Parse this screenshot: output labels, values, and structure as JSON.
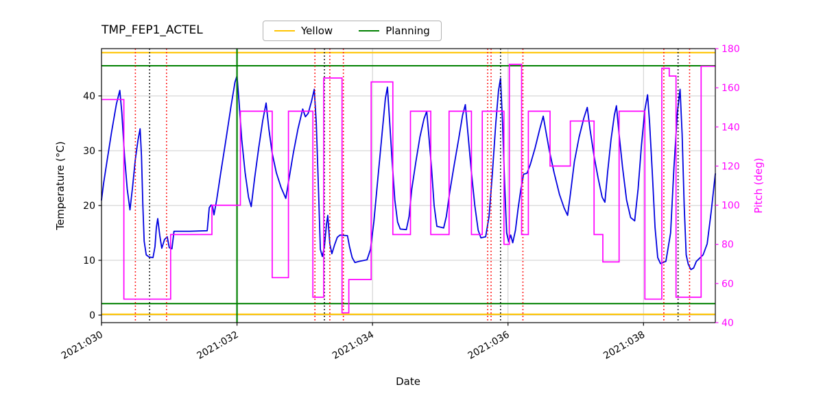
{
  "title": "TMP_FEP1_ACTEL",
  "legend": {
    "items": [
      {
        "label": "Yellow",
        "color": "#ffc400"
      },
      {
        "label": "Planning",
        "color": "#008000"
      }
    ]
  },
  "axes": {
    "xlabel": "Date",
    "ylabel_left": "Temperature (°C)",
    "ylabel_right": "Pitch (deg)",
    "xticks": [
      {
        "day": 30,
        "label": "2021:030"
      },
      {
        "day": 32,
        "label": "2021:032"
      },
      {
        "day": 34,
        "label": "2021:034"
      },
      {
        "day": 36,
        "label": "2021:036"
      },
      {
        "day": 38,
        "label": "2021:038"
      }
    ],
    "yticks_left": [
      0,
      10,
      20,
      30,
      40
    ],
    "yticks_right": [
      40,
      60,
      80,
      100,
      120,
      140,
      160,
      180
    ],
    "grid_color": "#cccccc",
    "right_axis_color": "#ff00ff"
  },
  "chart_data": {
    "type": "line",
    "xlim": [
      30,
      39.06
    ],
    "ylim_left": [
      -1.375,
      48.625
    ],
    "ylim_right": [
      40,
      180
    ],
    "series": [
      {
        "name": "temperature",
        "color": "#0000e0",
        "axis": "left",
        "step": false,
        "points": [
          [
            30.0,
            21
          ],
          [
            30.03,
            24
          ],
          [
            30.08,
            28
          ],
          [
            30.15,
            33.5
          ],
          [
            30.22,
            38.5
          ],
          [
            30.27,
            41
          ],
          [
            30.3,
            37
          ],
          [
            30.34,
            29
          ],
          [
            30.38,
            23
          ],
          [
            30.42,
            19.2
          ],
          [
            30.46,
            23.5
          ],
          [
            30.5,
            28.5
          ],
          [
            30.54,
            32
          ],
          [
            30.57,
            34
          ],
          [
            30.59,
            29
          ],
          [
            30.61,
            20
          ],
          [
            30.63,
            13.5
          ],
          [
            30.66,
            11
          ],
          [
            30.7,
            10.6
          ],
          [
            30.76,
            10.5
          ],
          [
            30.79,
            12.5
          ],
          [
            30.81,
            16
          ],
          [
            30.83,
            17.6
          ],
          [
            30.86,
            14.5
          ],
          [
            30.89,
            12.2
          ],
          [
            30.93,
            13.8
          ],
          [
            30.97,
            14.3
          ],
          [
            31.0,
            12.3
          ],
          [
            31.04,
            12.1
          ],
          [
            31.07,
            15.3
          ],
          [
            31.3,
            15.3
          ],
          [
            31.56,
            15.4
          ],
          [
            31.59,
            19.6
          ],
          [
            31.62,
            20.1
          ],
          [
            31.64,
            19.8
          ],
          [
            31.66,
            18.3
          ],
          [
            31.7,
            21
          ],
          [
            31.76,
            26
          ],
          [
            31.83,
            31.5
          ],
          [
            31.91,
            38
          ],
          [
            31.97,
            42.5
          ],
          [
            32.0,
            43.7
          ],
          [
            32.03,
            39
          ],
          [
            32.07,
            32
          ],
          [
            32.12,
            26
          ],
          [
            32.17,
            21.5
          ],
          [
            32.21,
            19.8
          ],
          [
            32.26,
            25
          ],
          [
            32.32,
            30.5
          ],
          [
            32.38,
            35.5
          ],
          [
            32.43,
            38.7
          ],
          [
            32.47,
            34
          ],
          [
            32.52,
            29.5
          ],
          [
            32.58,
            26
          ],
          [
            32.65,
            23.3
          ],
          [
            32.72,
            21.3
          ],
          [
            32.77,
            25
          ],
          [
            32.83,
            29.5
          ],
          [
            32.9,
            34
          ],
          [
            32.97,
            37.6
          ],
          [
            33.01,
            36.2
          ],
          [
            33.05,
            36.8
          ],
          [
            33.1,
            39
          ],
          [
            33.14,
            41.2
          ],
          [
            33.17,
            35
          ],
          [
            33.2,
            24
          ],
          [
            33.23,
            12
          ],
          [
            33.26,
            10.7
          ],
          [
            33.29,
            12.5
          ],
          [
            33.32,
            16.5
          ],
          [
            33.34,
            18.2
          ],
          [
            33.37,
            13
          ],
          [
            33.4,
            11.2
          ],
          [
            33.44,
            12.8
          ],
          [
            33.48,
            14.2
          ],
          [
            33.52,
            14.6
          ],
          [
            33.63,
            14.5
          ],
          [
            33.66,
            12.5
          ],
          [
            33.7,
            10.5
          ],
          [
            33.74,
            9.6
          ],
          [
            33.8,
            9.8
          ],
          [
            33.92,
            10.1
          ],
          [
            33.97,
            12
          ],
          [
            34.02,
            17
          ],
          [
            34.08,
            25
          ],
          [
            34.14,
            33
          ],
          [
            34.19,
            39.5
          ],
          [
            34.22,
            41.6
          ],
          [
            34.25,
            36
          ],
          [
            34.29,
            28
          ],
          [
            34.33,
            21
          ],
          [
            34.37,
            17
          ],
          [
            34.41,
            15.7
          ],
          [
            34.5,
            15.6
          ],
          [
            34.54,
            18
          ],
          [
            34.58,
            23
          ],
          [
            34.64,
            28
          ],
          [
            34.7,
            32.5
          ],
          [
            34.76,
            35.8
          ],
          [
            34.8,
            37.2
          ],
          [
            34.83,
            33
          ],
          [
            34.87,
            27
          ],
          [
            34.91,
            20
          ],
          [
            34.95,
            16.2
          ],
          [
            35.05,
            15.9
          ],
          [
            35.09,
            18
          ],
          [
            35.14,
            22.5
          ],
          [
            35.2,
            27
          ],
          [
            35.27,
            32
          ],
          [
            35.33,
            36.5
          ],
          [
            35.37,
            38.4
          ],
          [
            35.41,
            33
          ],
          [
            35.46,
            26
          ],
          [
            35.51,
            20
          ],
          [
            35.56,
            15.5
          ],
          [
            35.6,
            14.1
          ],
          [
            35.67,
            14.3
          ],
          [
            35.72,
            18
          ],
          [
            35.77,
            26
          ],
          [
            35.82,
            35
          ],
          [
            35.86,
            41
          ],
          [
            35.89,
            43.2
          ],
          [
            35.92,
            35
          ],
          [
            35.95,
            24
          ],
          [
            35.98,
            15
          ],
          [
            36.01,
            13.4
          ],
          [
            36.04,
            14.6
          ],
          [
            36.07,
            13.2
          ],
          [
            36.11,
            15.5
          ],
          [
            36.15,
            19.5
          ],
          [
            36.19,
            23
          ],
          [
            36.23,
            25.7
          ],
          [
            36.28,
            25.9
          ],
          [
            36.33,
            27.5
          ],
          [
            36.4,
            30.5
          ],
          [
            36.47,
            34
          ],
          [
            36.52,
            36.3
          ],
          [
            36.56,
            33.5
          ],
          [
            36.61,
            30
          ],
          [
            36.68,
            26
          ],
          [
            36.76,
            22
          ],
          [
            36.83,
            19.5
          ],
          [
            36.88,
            18.2
          ],
          [
            36.92,
            22
          ],
          [
            36.98,
            28
          ],
          [
            37.05,
            32.5
          ],
          [
            37.12,
            36
          ],
          [
            37.17,
            37.9
          ],
          [
            37.21,
            34
          ],
          [
            37.27,
            29
          ],
          [
            37.33,
            25
          ],
          [
            37.39,
            21.5
          ],
          [
            37.43,
            20.6
          ],
          [
            37.47,
            26
          ],
          [
            37.52,
            32
          ],
          [
            37.57,
            36.5
          ],
          [
            37.6,
            38.2
          ],
          [
            37.64,
            33
          ],
          [
            37.69,
            27
          ],
          [
            37.75,
            21
          ],
          [
            37.81,
            17.8
          ],
          [
            37.87,
            17.2
          ],
          [
            37.92,
            23
          ],
          [
            37.97,
            31
          ],
          [
            38.02,
            37.5
          ],
          [
            38.06,
            40.2
          ],
          [
            38.09,
            35
          ],
          [
            38.13,
            26
          ],
          [
            38.17,
            16
          ],
          [
            38.21,
            10.5
          ],
          [
            38.25,
            9.4
          ],
          [
            38.33,
            9.8
          ],
          [
            38.4,
            15
          ],
          [
            38.45,
            27
          ],
          [
            38.5,
            37
          ],
          [
            38.54,
            41.2
          ],
          [
            38.57,
            33
          ],
          [
            38.6,
            20
          ],
          [
            38.63,
            11
          ],
          [
            38.66,
            9.3
          ],
          [
            38.7,
            8.3
          ],
          [
            38.74,
            8.6
          ],
          [
            38.78,
            9.8
          ],
          [
            38.83,
            10.4
          ],
          [
            38.88,
            11
          ],
          [
            38.94,
            13
          ],
          [
            39.0,
            19
          ],
          [
            39.06,
            25.8
          ]
        ]
      },
      {
        "name": "pitch",
        "color": "#ff00ff",
        "axis": "right",
        "step": true,
        "points": [
          [
            30.0,
            154
          ],
          [
            30.33,
            52
          ],
          [
            31.02,
            85
          ],
          [
            31.63,
            100
          ],
          [
            32.05,
            148
          ],
          [
            32.52,
            63
          ],
          [
            32.76,
            148
          ],
          [
            33.12,
            53
          ],
          [
            33.28,
            165
          ],
          [
            33.55,
            45
          ],
          [
            33.65,
            62
          ],
          [
            33.98,
            163
          ],
          [
            34.3,
            85
          ],
          [
            34.56,
            148
          ],
          [
            34.86,
            85
          ],
          [
            35.13,
            148
          ],
          [
            35.46,
            85
          ],
          [
            35.62,
            148
          ],
          [
            35.94,
            80
          ],
          [
            36.02,
            172
          ],
          [
            36.2,
            85
          ],
          [
            36.3,
            148
          ],
          [
            36.62,
            120
          ],
          [
            36.92,
            143
          ],
          [
            37.27,
            85
          ],
          [
            37.4,
            71
          ],
          [
            37.64,
            148
          ],
          [
            38.02,
            52
          ],
          [
            38.27,
            170
          ],
          [
            38.38,
            166
          ],
          [
            38.48,
            53
          ],
          [
            38.85,
            171
          ]
        ]
      }
    ],
    "hlines": [
      {
        "name": "yellow-limit-high",
        "y": 47.9,
        "color": "#ffc400",
        "width": 2.2,
        "style": "solid"
      },
      {
        "name": "yellow-limit-low",
        "y": 0.15,
        "color": "#ffc400",
        "width": 2.2,
        "style": "solid"
      },
      {
        "name": "planning-limit-high",
        "y": 45.5,
        "color": "#008000",
        "width": 2,
        "style": "solid"
      },
      {
        "name": "planning-limit-low",
        "y": 2.1,
        "color": "#008000",
        "width": 2,
        "style": "solid"
      }
    ],
    "vlines": [
      {
        "x": 32.0,
        "color": "#008000",
        "width": 2.2,
        "style": "solid"
      },
      {
        "x": 30.5,
        "color": "#ff0000",
        "width": 1.6,
        "style": "dotted"
      },
      {
        "x": 30.96,
        "color": "#ff0000",
        "width": 1.6,
        "style": "dotted"
      },
      {
        "x": 33.15,
        "color": "#ff0000",
        "width": 1.6,
        "style": "dotted"
      },
      {
        "x": 33.37,
        "color": "#ff0000",
        "width": 1.6,
        "style": "dotted"
      },
      {
        "x": 33.57,
        "color": "#ff0000",
        "width": 1.6,
        "style": "dotted"
      },
      {
        "x": 35.7,
        "color": "#ff0000",
        "width": 1.6,
        "style": "dotted"
      },
      {
        "x": 35.75,
        "color": "#ff0000",
        "width": 1.6,
        "style": "dotted"
      },
      {
        "x": 36.22,
        "color": "#ff0000",
        "width": 1.6,
        "style": "dotted"
      },
      {
        "x": 38.3,
        "color": "#ff0000",
        "width": 1.6,
        "style": "dotted"
      },
      {
        "x": 38.68,
        "color": "#ff0000",
        "width": 1.6,
        "style": "dotted"
      },
      {
        "x": 30.71,
        "color": "#000000",
        "width": 1.6,
        "style": "dotted"
      },
      {
        "x": 33.29,
        "color": "#000000",
        "width": 1.6,
        "style": "dotted"
      },
      {
        "x": 35.89,
        "color": "#000000",
        "width": 1.6,
        "style": "dotted"
      },
      {
        "x": 38.51,
        "color": "#000000",
        "width": 1.6,
        "style": "dotted"
      }
    ]
  }
}
